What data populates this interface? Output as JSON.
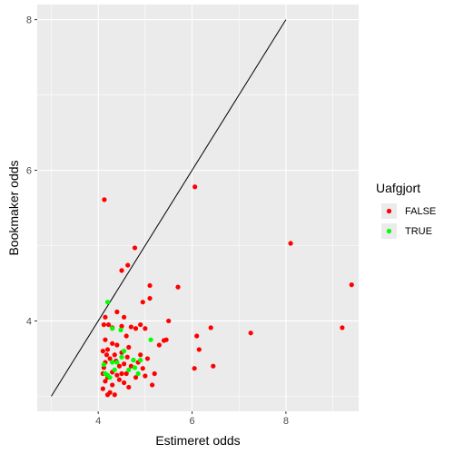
{
  "chart_data": {
    "type": "scatter",
    "title": "",
    "xlabel": "Estimeret odds",
    "ylabel": "Bookmaker odds",
    "xlim": [
      2.7,
      9.55
    ],
    "ylim": [
      2.8,
      8.2
    ],
    "x_ticks": [
      4,
      6,
      8
    ],
    "y_ticks": [
      4,
      6,
      8
    ],
    "grid": true,
    "background": "#ebebeb",
    "gridline_color": "#ffffff",
    "reference_line": {
      "x": [
        3,
        8
      ],
      "y": [
        3,
        8
      ],
      "color": "#000000"
    },
    "legend": {
      "title": "Uafgjort",
      "placement": "right"
    },
    "series": [
      {
        "name": "FALSE",
        "color": "#ff0000",
        "points": [
          [
            4.13,
            5.61
          ],
          [
            6.06,
            5.78
          ],
          [
            8.1,
            5.03
          ],
          [
            9.4,
            4.48
          ],
          [
            9.2,
            3.91
          ],
          [
            7.25,
            3.84
          ],
          [
            6.4,
            3.91
          ],
          [
            6.45,
            3.4
          ],
          [
            6.05,
            3.37
          ],
          [
            6.15,
            3.62
          ],
          [
            6.1,
            3.8
          ],
          [
            5.7,
            4.45
          ],
          [
            5.5,
            4.0
          ],
          [
            5.45,
            3.75
          ],
          [
            5.4,
            3.74
          ],
          [
            5.3,
            3.68
          ],
          [
            5.2,
            3.3
          ],
          [
            5.15,
            3.15
          ],
          [
            5.1,
            4.47
          ],
          [
            5.1,
            4.3
          ],
          [
            5.0,
            3.9
          ],
          [
            4.9,
            3.95
          ],
          [
            4.95,
            4.25
          ],
          [
            4.78,
            4.97
          ],
          [
            4.63,
            4.74
          ],
          [
            4.5,
            4.67
          ],
          [
            4.55,
            4.05
          ],
          [
            4.4,
            4.12
          ],
          [
            4.15,
            4.05
          ],
          [
            4.22,
            3.95
          ],
          [
            4.12,
            3.95
          ],
          [
            4.3,
            3.91
          ],
          [
            4.5,
            3.93
          ],
          [
            4.7,
            3.92
          ],
          [
            4.8,
            3.9
          ],
          [
            4.6,
            3.8
          ],
          [
            4.15,
            3.75
          ],
          [
            4.3,
            3.7
          ],
          [
            4.4,
            3.68
          ],
          [
            4.65,
            3.65
          ],
          [
            4.5,
            3.58
          ],
          [
            4.2,
            3.62
          ],
          [
            4.1,
            3.6
          ],
          [
            4.35,
            3.55
          ],
          [
            4.25,
            3.5
          ],
          [
            4.15,
            3.45
          ],
          [
            4.45,
            3.4
          ],
          [
            4.55,
            3.43
          ],
          [
            4.7,
            3.4
          ],
          [
            4.85,
            3.45
          ],
          [
            4.95,
            3.37
          ],
          [
            4.3,
            3.32
          ],
          [
            4.1,
            3.3
          ],
          [
            4.2,
            3.25
          ],
          [
            4.4,
            3.28
          ],
          [
            4.6,
            3.3
          ],
          [
            4.8,
            3.25
          ],
          [
            5.0,
            3.27
          ],
          [
            4.15,
            3.2
          ],
          [
            4.3,
            3.15
          ],
          [
            4.55,
            3.18
          ],
          [
            4.1,
            3.1
          ],
          [
            4.25,
            3.05
          ],
          [
            4.35,
            3.02
          ],
          [
            4.2,
            3.02
          ],
          [
            4.65,
            3.12
          ],
          [
            4.45,
            3.22
          ],
          [
            4.12,
            3.38
          ],
          [
            4.38,
            3.47
          ],
          [
            4.62,
            3.52
          ],
          [
            4.75,
            3.48
          ],
          [
            4.9,
            3.55
          ],
          [
            5.05,
            3.5
          ],
          [
            4.5,
            3.3
          ],
          [
            4.18,
            3.55
          ]
        ]
      },
      {
        "name": "TRUE",
        "color": "#00ff00",
        "points": [
          [
            4.2,
            4.25
          ],
          [
            4.3,
            3.9
          ],
          [
            4.48,
            3.88
          ],
          [
            4.55,
            3.6
          ],
          [
            5.12,
            3.75
          ],
          [
            4.75,
            3.48
          ],
          [
            4.78,
            3.38
          ],
          [
            4.9,
            3.48
          ],
          [
            4.12,
            3.42
          ],
          [
            4.35,
            3.35
          ],
          [
            4.2,
            3.28
          ],
          [
            4.25,
            3.25
          ],
          [
            4.65,
            3.35
          ],
          [
            4.85,
            3.3
          ],
          [
            4.4,
            3.45
          ],
          [
            4.5,
            3.52
          ],
          [
            4.15,
            3.3
          ],
          [
            4.3,
            3.45
          ]
        ]
      }
    ]
  }
}
